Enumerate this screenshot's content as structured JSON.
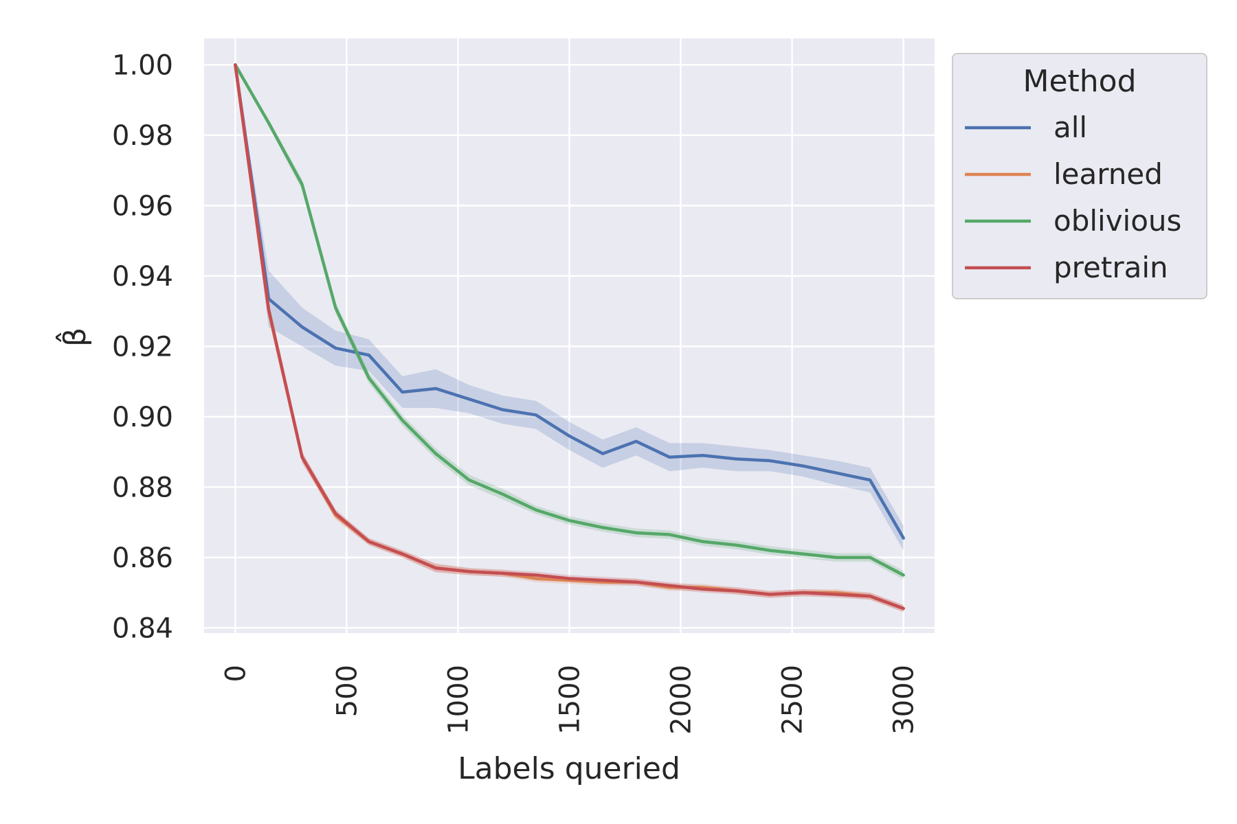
{
  "chart_data": {
    "type": "line",
    "xlabel": "Labels queried",
    "ylabel": "β̂",
    "xlim": [
      -140,
      3140
    ],
    "ylim": [
      0.8385,
      1.0075
    ],
    "x_ticks": [
      0,
      500,
      1000,
      1500,
      2000,
      2500,
      3000
    ],
    "x_tick_labels": [
      "0",
      "500",
      "1000",
      "1500",
      "2000",
      "2500",
      "3000"
    ],
    "y_ticks": [
      0.84,
      0.86,
      0.88,
      0.9,
      0.92,
      0.94,
      0.96,
      0.98,
      1.0
    ],
    "y_tick_labels": [
      "0.84",
      "0.86",
      "0.88",
      "0.90",
      "0.92",
      "0.94",
      "0.96",
      "0.98",
      "1.00"
    ],
    "grid": true,
    "legend": {
      "title": "Method",
      "placement": "outside-right-top"
    },
    "x": [
      0,
      150,
      300,
      450,
      600,
      750,
      900,
      1050,
      1200,
      1350,
      1500,
      1650,
      1800,
      1950,
      2100,
      2250,
      2400,
      2550,
      2700,
      2850,
      3000
    ],
    "series": [
      {
        "name": "all",
        "color": "#4c72b0",
        "values": [
          1.0,
          0.9335,
          0.9255,
          0.9195,
          0.9175,
          0.907,
          0.908,
          0.905,
          0.902,
          0.9005,
          0.8945,
          0.8895,
          0.893,
          0.8885,
          0.889,
          0.888,
          0.8875,
          0.886,
          0.884,
          0.882,
          0.8655
        ],
        "band_width": [
          0.0,
          0.008,
          0.0055,
          0.005,
          0.0045,
          0.0045,
          0.0055,
          0.004,
          0.004,
          0.004,
          0.004,
          0.004,
          0.004,
          0.004,
          0.0035,
          0.0035,
          0.003,
          0.003,
          0.0035,
          0.0035,
          0.0035
        ]
      },
      {
        "name": "learned",
        "color": "#dd8452",
        "values": [
          1.0,
          0.93,
          0.8885,
          0.872,
          0.8645,
          0.861,
          0.857,
          0.856,
          0.8555,
          0.854,
          0.8535,
          0.853,
          0.853,
          0.8515,
          0.8515,
          0.8505,
          0.8495,
          0.85,
          0.85,
          0.849,
          0.8455
        ],
        "band_width": [
          0.0,
          0.0015,
          0.0015,
          0.0012,
          0.001,
          0.001,
          0.0012,
          0.001,
          0.001,
          0.001,
          0.001,
          0.001,
          0.001,
          0.001,
          0.001,
          0.001,
          0.001,
          0.001,
          0.001,
          0.001,
          0.001
        ]
      },
      {
        "name": "oblivious",
        "color": "#55a868",
        "values": [
          1.0,
          0.9835,
          0.966,
          0.931,
          0.911,
          0.899,
          0.8895,
          0.882,
          0.878,
          0.8735,
          0.8705,
          0.8685,
          0.867,
          0.8665,
          0.8645,
          0.8635,
          0.862,
          0.861,
          0.86,
          0.86,
          0.855
        ],
        "band_width": [
          0.0,
          0.001,
          0.0015,
          0.0015,
          0.0015,
          0.0015,
          0.0015,
          0.0015,
          0.0015,
          0.0012,
          0.0012,
          0.0012,
          0.0012,
          0.0012,
          0.0012,
          0.0012,
          0.0012,
          0.0012,
          0.0012,
          0.0012,
          0.0012
        ]
      },
      {
        "name": "pretrain",
        "color": "#c44e52",
        "values": [
          1.0,
          0.9305,
          0.8885,
          0.8725,
          0.8645,
          0.861,
          0.857,
          0.856,
          0.8555,
          0.855,
          0.854,
          0.8535,
          0.853,
          0.852,
          0.851,
          0.8505,
          0.8495,
          0.85,
          0.8495,
          0.849,
          0.8455
        ],
        "band_width": [
          0.0,
          0.0015,
          0.0015,
          0.0012,
          0.001,
          0.001,
          0.0012,
          0.001,
          0.001,
          0.001,
          0.001,
          0.001,
          0.001,
          0.001,
          0.001,
          0.001,
          0.001,
          0.001,
          0.001,
          0.001,
          0.001
        ]
      }
    ]
  }
}
